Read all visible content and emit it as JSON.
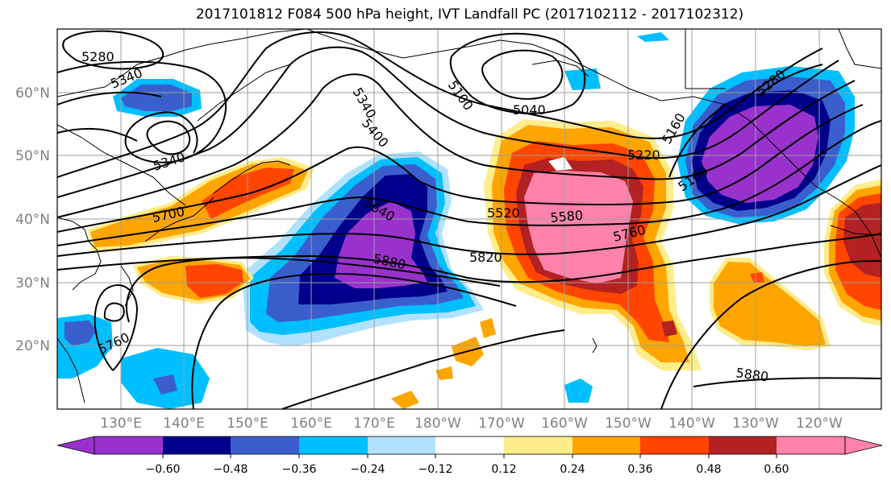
{
  "title": "2017101812 F084 500 hPa height, IVT Landfall PC (2017102112 - 2017102312)",
  "lat_labels": [
    "60°N",
    "50°N",
    "40°N",
    "30°N",
    "20°N"
  ],
  "lon_labels": [
    "130°E",
    "140°E",
    "150°E",
    "160°E",
    "170°E",
    "180°W",
    "170°W",
    "160°W",
    "150°W",
    "140°W",
    "130°W",
    "120°W"
  ],
  "contour_labels": [
    "5280",
    "5340",
    "5340",
    "5100",
    "5040",
    "5340",
    "5400",
    "5220",
    "5160",
    "5280",
    "5160",
    "5700",
    "5640",
    "5520",
    "5580",
    "5760",
    "5820",
    "5880",
    "5760",
    "5880"
  ],
  "colorbar": {
    "tick_labels": [
      "−0.60",
      "−0.48",
      "−0.36",
      "−0.24",
      "−0.12",
      "0.12",
      "0.24",
      "0.36",
      "0.48",
      "0.60"
    ],
    "colors": [
      "#9932CC",
      "#00008B",
      "#3A5FCD",
      "#00BFFF",
      "#B0E2FF",
      "#FFFFFF",
      "#FFEC8B",
      "#FFA500",
      "#FF4500",
      "#B22222",
      "#FF82AB"
    ]
  }
}
